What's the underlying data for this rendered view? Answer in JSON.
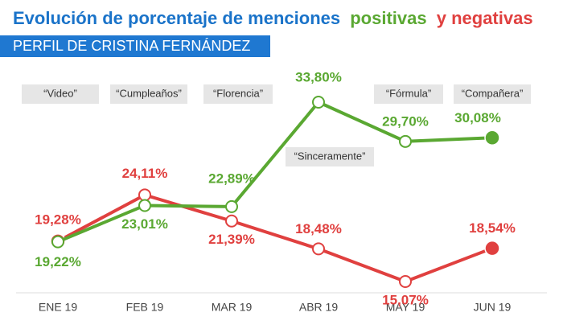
{
  "chart_data": {
    "type": "line",
    "title": [
      "Evolución de porcentaje de menciones",
      "positivas",
      "y negativas"
    ],
    "subtitle": "PERFIL DE CRISTINA FERNÁNDEZ",
    "categories": [
      "ENE 19",
      "FEB 19",
      "MAR 19",
      "ABR 19",
      "MAY 19",
      "JUN 19"
    ],
    "series": [
      {
        "name": "positivas",
        "color": "#5aa832",
        "values": [
          19.22,
          23.01,
          22.89,
          33.8,
          29.7,
          30.08
        ],
        "value_labels": [
          "19,22%",
          "23,01%",
          "22,89%",
          "33,80%",
          "29,70%",
          "30,08%"
        ]
      },
      {
        "name": "negativas",
        "color": "#e0403f",
        "values": [
          19.28,
          24.11,
          21.39,
          18.48,
          15.07,
          18.54
        ],
        "value_labels": [
          "19,28%",
          "24,11%",
          "21,39%",
          "18,48%",
          "15,07%",
          "18,54%"
        ]
      }
    ],
    "annotations": [
      "“Video”",
      "“Cumpleaños”",
      "“Florencia”",
      "“Sinceramente”",
      "“Fórmula”",
      "“Compañera”"
    ],
    "title_color": "#1a73c9"
  }
}
